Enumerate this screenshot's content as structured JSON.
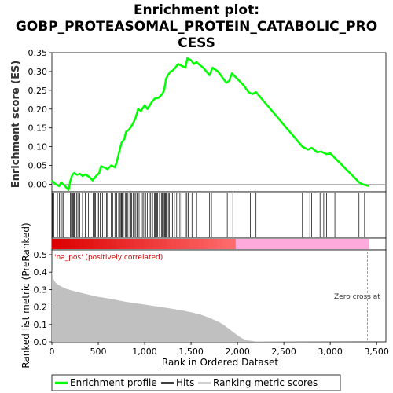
{
  "title_lines": [
    "Enrichment plot:",
    "GOBP_PROTEASOMAL_PROTEIN_CATABOLIC_PRO",
    "CESS"
  ],
  "es_axis": {
    "label": "Enrichment score (ES)",
    "ticks": [
      "0.35",
      "0.30",
      "0.25",
      "0.20",
      "0.15",
      "0.10",
      "0.05",
      "0.00"
    ],
    "ylim": [
      -0.02,
      0.35
    ]
  },
  "rank_axis": {
    "label": "Ranked list metric (PreRanked)",
    "ticks": [
      "0.5",
      "0.4",
      "0.3",
      "0.2",
      "0.1",
      "0.0"
    ],
    "ylim": [
      0,
      0.5
    ]
  },
  "x_axis": {
    "label": "Rank in Ordered Dataset",
    "ticks": [
      "0",
      "500",
      "1,000",
      "1,500",
      "2,000",
      "2,500",
      "3,000",
      "3,500"
    ],
    "xlim": [
      0,
      3600
    ]
  },
  "annotations": {
    "positive": "'na_pos' (positively correlated)",
    "zero_cross": "Zero cross at"
  },
  "legend": {
    "enrichment": "Enrichment profile",
    "hits": "Hits",
    "ranking": "Ranking metric scores"
  },
  "colors": {
    "enrichment": "#00ff00",
    "hits": "#000000",
    "ranking_fill": "#c0c0c0",
    "pos_bar": "#ff3333",
    "neg_bar": "#ffaadd"
  },
  "chart_data": {
    "type": "line",
    "enrichment_profile": {
      "x": [
        0,
        40,
        80,
        100,
        130,
        160,
        180,
        200,
        220,
        240,
        270,
        300,
        330,
        360,
        400,
        440,
        470,
        490,
        510,
        530,
        560,
        600,
        640,
        680,
        700,
        730,
        750,
        780,
        800,
        830,
        870,
        900,
        930,
        960,
        1000,
        1030,
        1080,
        1110,
        1150,
        1190,
        1210,
        1230,
        1250,
        1280,
        1300,
        1330,
        1360,
        1400,
        1440,
        1460,
        1480,
        1500,
        1530,
        1560,
        1580,
        1630,
        1700,
        1730,
        1790,
        1850,
        1880,
        1910,
        1940,
        2000,
        2060,
        2120,
        2160,
        2200,
        2700,
        2760,
        2800,
        2860,
        2900,
        2960,
        3000,
        3050,
        3320,
        3360,
        3420
      ],
      "y": [
        0.01,
        0.0,
        -0.005,
        0.005,
        -0.002,
        -0.01,
        -0.015,
        0.01,
        0.025,
        0.03,
        0.025,
        0.028,
        0.022,
        0.026,
        0.02,
        0.01,
        0.02,
        0.025,
        0.03,
        0.048,
        0.045,
        0.04,
        0.05,
        0.045,
        0.06,
        0.09,
        0.11,
        0.12,
        0.14,
        0.145,
        0.16,
        0.175,
        0.2,
        0.195,
        0.21,
        0.2,
        0.22,
        0.228,
        0.23,
        0.24,
        0.25,
        0.28,
        0.29,
        0.3,
        0.302,
        0.31,
        0.32,
        0.315,
        0.31,
        0.335,
        0.333,
        0.33,
        0.32,
        0.325,
        0.32,
        0.31,
        0.29,
        0.31,
        0.3,
        0.28,
        0.27,
        0.275,
        0.295,
        0.28,
        0.265,
        0.245,
        0.24,
        0.245,
        0.1,
        0.092,
        0.097,
        0.085,
        0.087,
        0.08,
        0.082,
        0.07,
        0.003,
        -0.001,
        -0.005
      ]
    },
    "hit_positions": [
      5,
      20,
      60,
      80,
      95,
      110,
      125,
      200,
      210,
      215,
      225,
      232,
      240,
      248,
      265,
      280,
      300,
      330,
      360,
      395,
      445,
      460,
      470,
      490,
      505,
      520,
      545,
      570,
      590,
      600,
      640,
      655,
      680,
      700,
      720,
      735,
      745,
      752,
      760,
      770,
      790,
      800,
      820,
      840,
      850,
      860,
      875,
      890,
      905,
      920,
      940,
      960,
      975,
      990,
      1010,
      1030,
      1050,
      1065,
      1085,
      1105,
      1115,
      1130,
      1140,
      1160,
      1180,
      1190,
      1200,
      1210,
      1218,
      1225,
      1233,
      1240,
      1255,
      1265,
      1285,
      1300,
      1320,
      1345,
      1360,
      1380,
      1400,
      1440,
      1455,
      1470,
      1510,
      1560,
      1700,
      1720,
      1890,
      1920,
      1950,
      2140,
      2200,
      2700,
      2780,
      2800,
      2890,
      2930,
      2960,
      3050,
      3310,
      3370
    ],
    "ranking_metric": {
      "x": [
        0,
        10,
        30,
        60,
        100,
        150,
        200,
        300,
        400,
        500,
        600,
        700,
        800,
        900,
        1000,
        1100,
        1200,
        1300,
        1400,
        1500,
        1600,
        1700,
        1800,
        1850,
        1900,
        1950,
        2000,
        2050,
        2100,
        2200,
        3400
      ],
      "y": [
        0.41,
        0.37,
        0.345,
        0.33,
        0.318,
        0.305,
        0.297,
        0.283,
        0.27,
        0.258,
        0.25,
        0.24,
        0.23,
        0.222,
        0.214,
        0.206,
        0.198,
        0.19,
        0.181,
        0.17,
        0.157,
        0.138,
        0.114,
        0.098,
        0.078,
        0.058,
        0.038,
        0.02,
        0.009,
        0.002,
        0.0
      ]
    },
    "zero_cross_rank": 3400,
    "color_bar_split_rank": 1980,
    "list_size": 3420
  }
}
